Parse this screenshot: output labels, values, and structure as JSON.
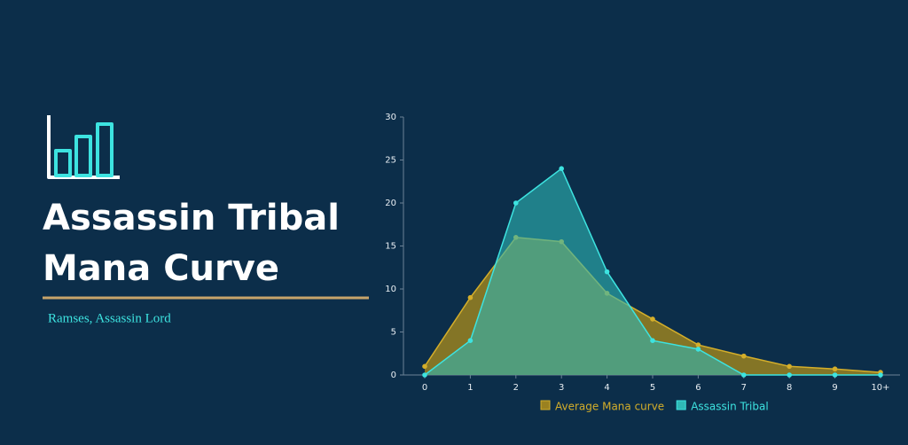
{
  "chart_data": {
    "type": "area",
    "title": [
      "Assassin Tribal",
      "Mana Curve"
    ],
    "subtitle": "Ramses, Assassin Lord",
    "categories": [
      "0",
      "1",
      "2",
      "3",
      "4",
      "5",
      "6",
      "7",
      "8",
      "9",
      "10+"
    ],
    "series": [
      {
        "name": "Average Mana curve",
        "color": "#d4ae2a",
        "fill": "#9a8120",
        "values": [
          1,
          9,
          16,
          15.5,
          9.5,
          6.5,
          3.5,
          2.2,
          1,
          0.7,
          0.3
        ]
      },
      {
        "name": "Assassin Tribal",
        "color": "#3de3e0",
        "fill": "#2fb8b6",
        "values": [
          0,
          4,
          20,
          24,
          12,
          4,
          3,
          0,
          0,
          0,
          0
        ]
      }
    ],
    "ylim": [
      0,
      30
    ],
    "yticks": [
      0,
      5,
      10,
      15,
      20,
      25,
      30
    ],
    "legend": "bottom"
  }
}
